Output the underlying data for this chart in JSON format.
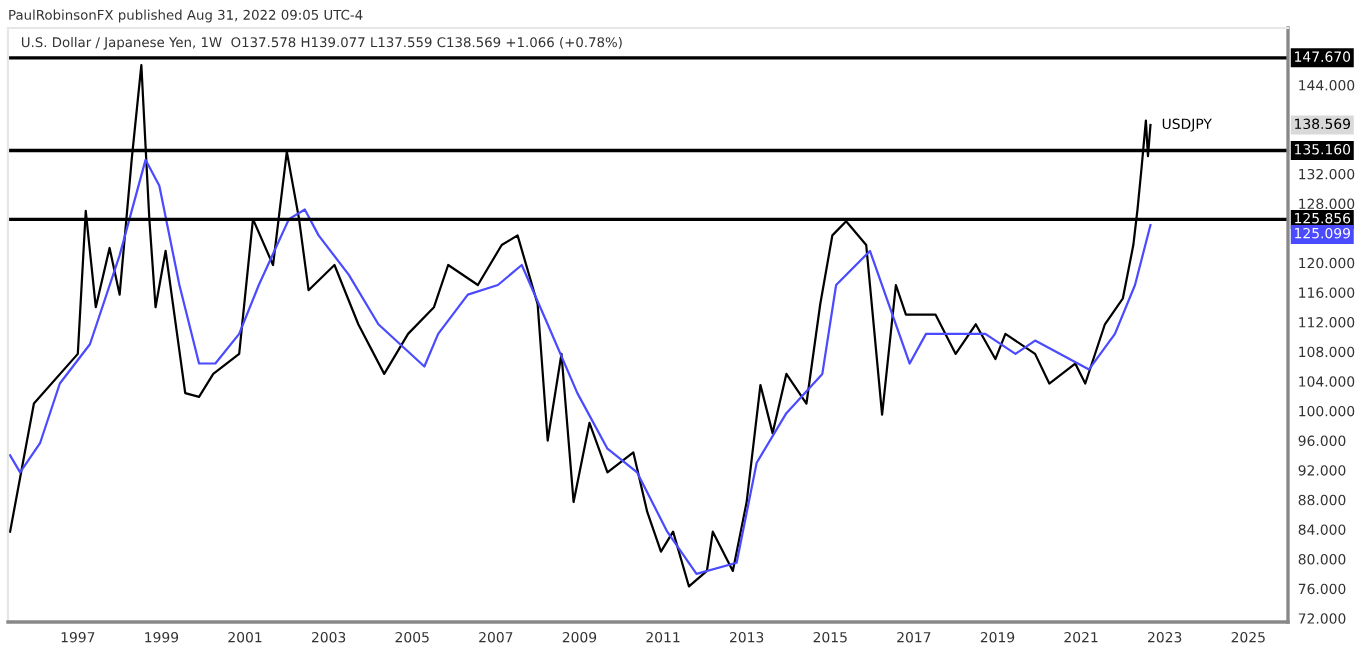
{
  "chart_data": {
    "type": "line",
    "title": "U.S. Dollar / Japanese Yen, 1W  O137.578 H139.077 L137.559 C138.569 +1.066 (+0.78%)",
    "annotations": [
      "PaulRobinsonFX published Aug 31, 2022 09:05 UTC-4",
      "138.569",
      "125.099"
    ],
    "series": [
      {
        "name": "USDJPY",
        "color": "#000000",
        "x": [
          1995.38,
          1995.95,
          1997.0,
          1997.19,
          1997.43,
          1997.76,
          1998.0,
          1998.29,
          1998.52,
          1998.71,
          1998.86,
          1999.1,
          1999.57,
          1999.9,
          2000.24,
          2000.86,
          2001.19,
          2001.67,
          2002.0,
          2002.29,
          2002.52,
          2003.14,
          2003.71,
          2004.33,
          2004.9,
          2005.52,
          2005.86,
          2006.57,
          2007.14,
          2007.52,
          2008.0,
          2008.24,
          2008.57,
          2008.86,
          2009.24,
          2009.67,
          2010.29,
          2010.62,
          2010.95,
          2011.24,
          2011.62,
          2012.05,
          2012.19,
          2012.67,
          2013.0,
          2013.33,
          2013.62,
          2013.95,
          2014.43,
          2014.76,
          2015.05,
          2015.38,
          2015.86,
          2016.24,
          2016.57,
          2016.81,
          2017.14,
          2017.52,
          2018.0,
          2018.48,
          2018.95,
          2019.19,
          2019.9,
          2020.24,
          2020.86,
          2021.1,
          2021.57,
          2022.0,
          2022.25,
          2022.35,
          2022.45,
          2022.55,
          2022.6,
          2022.66
        ],
        "values": [
          83.7,
          101,
          107.7,
          127,
          114,
          122,
          115.7,
          134,
          146.7,
          126,
          114,
          121.6,
          102.4,
          101.9,
          105,
          107.7,
          125.9,
          119.7,
          135,
          126,
          116.3,
          119.7,
          111.7,
          105,
          110.4,
          114,
          119.7,
          117,
          122.4,
          123.7,
          114.4,
          96,
          107.7,
          87.7,
          98.4,
          91.7,
          94.4,
          86.4,
          81,
          83.7,
          76.3,
          78.4,
          83.7,
          78.4,
          87.7,
          103.5,
          97,
          105,
          101,
          114.4,
          123.7,
          125.6,
          122.4,
          99.5,
          117,
          113,
          113,
          113,
          107.7,
          111.7,
          107,
          110.4,
          107.7,
          103.7,
          106.4,
          103.7,
          111.7,
          115.2,
          122.4,
          127.2,
          133,
          139.2,
          134.4,
          138.6
        ]
      },
      {
        "color": "#4a4aff",
        "x": [
          1995.38,
          1995.62,
          1996.1,
          1996.57,
          1997.29,
          1998.0,
          1998.62,
          1998.95,
          1999.43,
          1999.9,
          2000.29,
          2000.86,
          2001.33,
          2002.05,
          2002.43,
          2002.76,
          2003.48,
          2004.19,
          2005.29,
          2005.62,
          2006.33,
          2007.05,
          2007.62,
          2008.24,
          2008.95,
          2009.67,
          2010.38,
          2011.1,
          2011.8,
          2012.76,
          2013.24,
          2013.95,
          2014.81,
          2015.14,
          2015.95,
          2016.9,
          2017.29,
          2018.0,
          2018.71,
          2019.43,
          2019.9,
          2021.19,
          2021.81,
          2022.29,
          2022.66
        ],
        "values": [
          94,
          91.7,
          95.7,
          103.7,
          109,
          121,
          133.9,
          130.4,
          117,
          106.4,
          106.4,
          110.4,
          117,
          125.9,
          127.2,
          123.7,
          118.4,
          111.7,
          106,
          110.4,
          115.7,
          117,
          119.7,
          111.7,
          102.4,
          94.9,
          91.7,
          83.7,
          78,
          79.5,
          93,
          99.7,
          105,
          117,
          121.6,
          106.4,
          110.4,
          110.4,
          110.4,
          107.7,
          109.5,
          105.6,
          110.4,
          117,
          125.1
        ]
      }
    ],
    "ref_lines": [
      {
        "axis": "y",
        "value": 147.67,
        "label": "147.670",
        "color": "#000000"
      },
      {
        "axis": "y",
        "value": 135.16,
        "label": "135.160",
        "color": "#000000"
      },
      {
        "axis": "y",
        "value": 125.856,
        "label": "125.856",
        "color": "#000000"
      }
    ],
    "xlim": [
      1995.33,
      2025.95
    ],
    "xticks": [
      1997,
      1999,
      2001,
      2003,
      2005,
      2007,
      2009,
      2011,
      2013,
      2015,
      2017,
      2019,
      2021,
      2023,
      2025
    ],
    "ylim": [
      71.5,
      151.7
    ],
    "yticks": [
      {
        "value": 72,
        "label": "72.000"
      },
      {
        "value": 76,
        "label": "76.000"
      },
      {
        "value": 80,
        "label": "80.000"
      },
      {
        "value": 84,
        "label": "84.000"
      },
      {
        "value": 88,
        "label": "88.000"
      },
      {
        "value": 92,
        "label": "92.000"
      },
      {
        "value": 96,
        "label": "96.000"
      },
      {
        "value": 100,
        "label": "100.000"
      },
      {
        "value": 104,
        "label": "104.000"
      },
      {
        "value": 108,
        "label": "108.000"
      },
      {
        "value": 112,
        "label": "112.000"
      },
      {
        "value": 116,
        "label": "116.000"
      },
      {
        "value": 120,
        "label": "120.000"
      },
      {
        "value": 128,
        "label": "128.000"
      },
      {
        "value": 132,
        "label": "132.000"
      },
      {
        "value": 144,
        "label": "144.000"
      }
    ],
    "grid": false,
    "legend": false
  }
}
